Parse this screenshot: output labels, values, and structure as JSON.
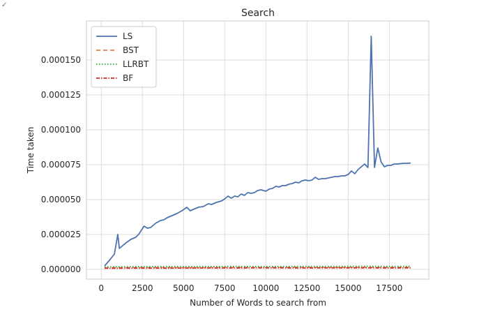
{
  "corner_mark": "✓",
  "chart_data": {
    "type": "line",
    "title": "Search",
    "xlabel": "Number of Words to search from",
    "ylabel": "Time taken",
    "xlim": [
      -900,
      19900
    ],
    "ylim": [
      -7e-06,
      0.000178
    ],
    "x_ticks": [
      0,
      2500,
      5000,
      7500,
      10000,
      12500,
      15000,
      17500
    ],
    "x_tick_labels": [
      "0",
      "2500",
      "5000",
      "7500",
      "10000",
      "12500",
      "15000",
      "17500"
    ],
    "y_ticks": [
      0,
      2.5e-05,
      5e-05,
      7.5e-05,
      0.0001,
      0.000125,
      0.00015
    ],
    "y_tick_labels": [
      "0.000000",
      "0.000025",
      "0.000050",
      "0.000075",
      "0.000100",
      "0.000125",
      "0.000150"
    ],
    "grid": true,
    "legend_position": "top-left",
    "series": [
      {
        "name": "LS",
        "color": "#4c72b0",
        "dash": "solid",
        "x": [
          200,
          500,
          800,
          1000,
          1100,
          1300,
          1500,
          1800,
          2100,
          2300,
          2600,
          2800,
          3000,
          3300,
          3600,
          3800,
          4000,
          4300,
          4600,
          4900,
          5200,
          5400,
          5600,
          5900,
          6200,
          6500,
          6700,
          7000,
          7300,
          7500,
          7700,
          7900,
          8100,
          8300,
          8500,
          8700,
          8900,
          9100,
          9300,
          9500,
          9700,
          10000,
          10200,
          10400,
          10600,
          10800,
          11000,
          11200,
          11400,
          11600,
          11800,
          12000,
          12200,
          12400,
          12600,
          12800,
          13000,
          13200,
          13400,
          13600,
          13800,
          14000,
          14200,
          14400,
          14600,
          14800,
          15000,
          15200,
          15400,
          15600,
          15800,
          16000,
          16200,
          16400,
          16600,
          16800,
          17000,
          17200,
          17400,
          17600,
          17800,
          18000,
          18200,
          18400,
          18600,
          18800
        ],
        "y": [
          2.5e-06,
          6.5e-06,
          1.1e-05,
          2.5e-05,
          1.5e-05,
          1.7e-05,
          1.9e-05,
          2.15e-05,
          2.3e-05,
          2.55e-05,
          3.1e-05,
          2.95e-05,
          3e-05,
          3.3e-05,
          3.5e-05,
          3.55e-05,
          3.7e-05,
          3.85e-05,
          4e-05,
          4.2e-05,
          4.45e-05,
          4.2e-05,
          4.3e-05,
          4.45e-05,
          4.5e-05,
          4.7e-05,
          4.65e-05,
          4.8e-05,
          4.9e-05,
          5.05e-05,
          5.25e-05,
          5.1e-05,
          5.25e-05,
          5.2e-05,
          5.4e-05,
          5.3e-05,
          5.5e-05,
          5.45e-05,
          5.5e-05,
          5.65e-05,
          5.7e-05,
          5.6e-05,
          5.75e-05,
          5.8e-05,
          5.95e-05,
          5.9e-05,
          6e-05,
          6e-05,
          6.1e-05,
          6.15e-05,
          6.25e-05,
          6.2e-05,
          6.35e-05,
          6.4e-05,
          6.35e-05,
          6.4e-05,
          6.6e-05,
          6.45e-05,
          6.5e-05,
          6.5e-05,
          6.55e-05,
          6.6e-05,
          6.65e-05,
          6.65e-05,
          6.7e-05,
          6.7e-05,
          6.8e-05,
          7.05e-05,
          6.85e-05,
          7.15e-05,
          7.35e-05,
          7.55e-05,
          7.3e-05,
          0.000167,
          7.3e-05,
          8.7e-05,
          7.7e-05,
          7.35e-05,
          7.45e-05,
          7.45e-05,
          7.55e-05,
          7.55e-05,
          7.58e-05,
          7.6e-05,
          7.6e-05,
          7.62e-05
        ]
      },
      {
        "name": "BST",
        "color": "#dd8452",
        "dash": "6,4",
        "x": [
          200,
          2000,
          4000,
          6000,
          8000,
          10000,
          12000,
          14000,
          16000,
          17500,
          18800
        ],
        "y": [
          1.1e-06,
          1.2e-06,
          1.3e-06,
          1.2e-06,
          1.4e-06,
          1.3e-06,
          1.5e-06,
          1.4e-06,
          1.5e-06,
          1.4e-06,
          1.5e-06
        ]
      },
      {
        "name": "LLRBT",
        "color": "#2ca02c",
        "dash": "1.5,2.5",
        "x": [
          200,
          2000,
          4000,
          6000,
          8000,
          10000,
          12000,
          14000,
          16000,
          17500,
          18800
        ],
        "y": [
          1.8e-06,
          1.9e-06,
          2e-06,
          2e-06,
          2.1e-06,
          2e-06,
          2.1e-06,
          2.1e-06,
          2.2e-06,
          2.1e-06,
          2.2e-06
        ]
      },
      {
        "name": "BF",
        "color": "#d62728",
        "dash": "5,2,1.5,2",
        "x": [
          200,
          2000,
          4000,
          6000,
          8000,
          10000,
          12000,
          14000,
          16000,
          17500,
          18800
        ],
        "y": [
          8e-07,
          9e-07,
          9e-07,
          1e-06,
          1e-06,
          1.1e-06,
          1e-06,
          1.1e-06,
          1.1e-06,
          1e-06,
          1.1e-06
        ]
      }
    ]
  }
}
